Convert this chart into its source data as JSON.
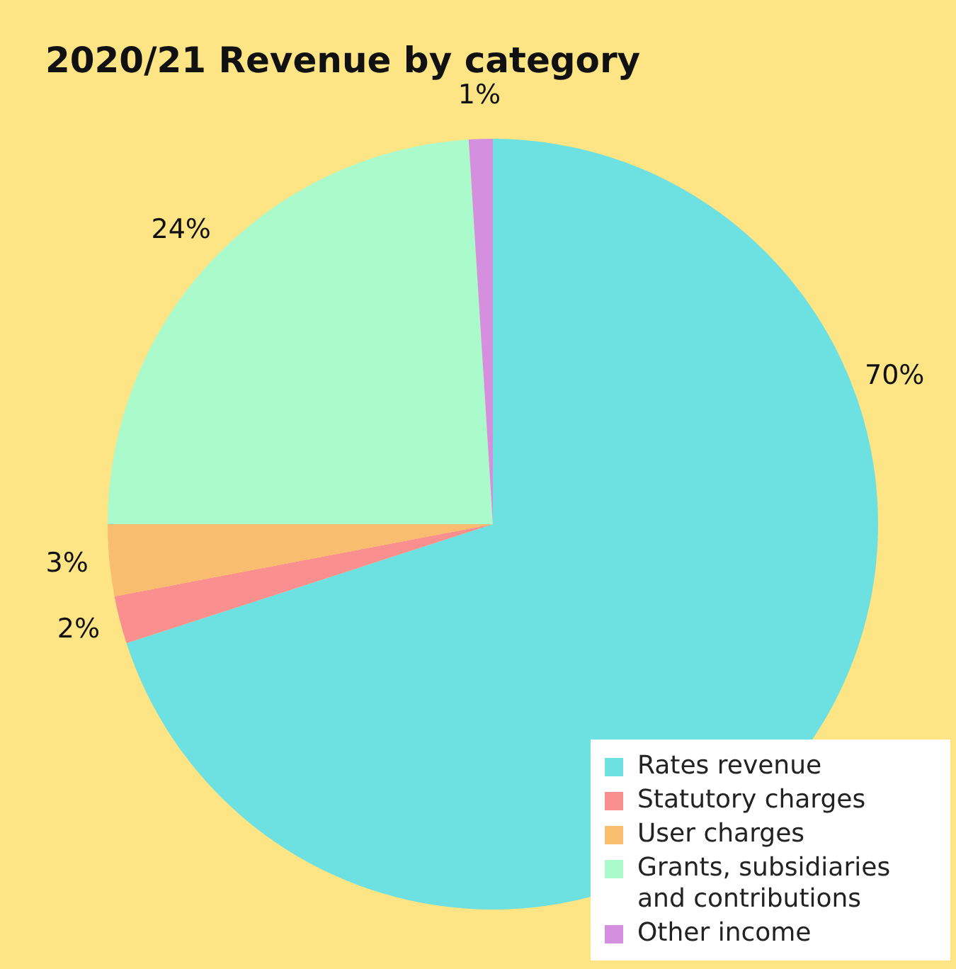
{
  "chart_data": {
    "type": "pie",
    "title": "2020/21 Revenue by category",
    "categories": [
      "Rates revenue",
      "Statutory charges",
      "User charges",
      "Grants, subsidiaries and contributions",
      "Other income"
    ],
    "values": [
      70,
      2,
      3,
      24,
      1
    ],
    "colors": [
      "#6de0e2",
      "#f98f8f",
      "#f9bd70",
      "#abfacb",
      "#d48fdf"
    ],
    "value_labels": [
      "70%",
      "2%",
      "3%",
      "24%",
      "1%"
    ],
    "legend": "bottom right"
  }
}
